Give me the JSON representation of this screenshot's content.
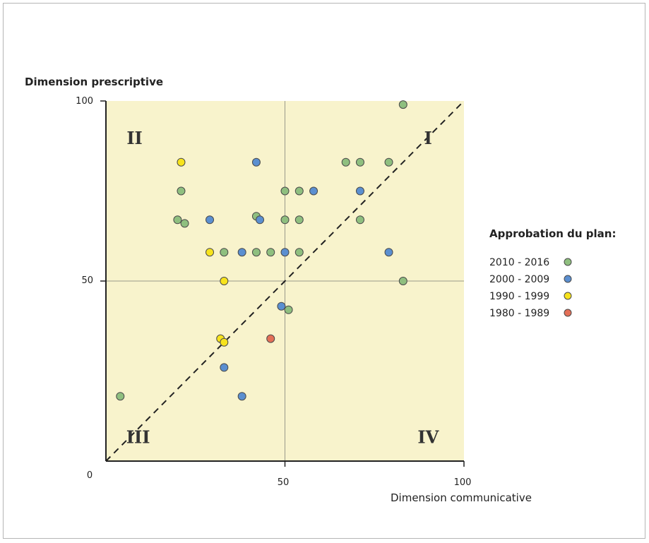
{
  "chart_data": {
    "type": "scatter",
    "title": "",
    "ylabel": "Dimension prescriptive",
    "xlabel": "Dimension communicative",
    "xlim": [
      0,
      100
    ],
    "ylim": [
      0,
      100
    ],
    "origin_label": "0",
    "x_ticks": [
      "50",
      "100"
    ],
    "y_ticks": [
      "50",
      "100"
    ],
    "reference_lines": {
      "x": 50,
      "y": 50,
      "diagonal": true
    },
    "quadrants": [
      {
        "label": "I",
        "position": "top-right"
      },
      {
        "label": "II",
        "position": "top-left"
      },
      {
        "label": "III",
        "position": "bottom-left"
      },
      {
        "label": "IV",
        "position": "bottom-right"
      }
    ],
    "legend": {
      "title": "Approbation du plan:",
      "placement": "right"
    },
    "series": [
      {
        "name": "2010 - 2016",
        "color": "#8fbf7f",
        "points": [
          [
            83,
            99
          ],
          [
            67,
            83
          ],
          [
            71,
            83
          ],
          [
            79,
            83
          ],
          [
            21,
            75
          ],
          [
            50,
            75
          ],
          [
            54,
            75
          ],
          [
            20,
            67
          ],
          [
            22,
            66
          ],
          [
            42,
            68
          ],
          [
            50,
            67
          ],
          [
            54,
            67
          ],
          [
            71,
            67
          ],
          [
            33,
            58
          ],
          [
            42,
            58
          ],
          [
            46,
            58
          ],
          [
            54,
            58
          ],
          [
            83,
            50
          ],
          [
            51,
            42
          ],
          [
            4,
            18
          ]
        ]
      },
      {
        "name": "2000 - 2009",
        "color": "#5b8fd0",
        "points": [
          [
            42,
            83
          ],
          [
            58,
            75
          ],
          [
            71,
            75
          ],
          [
            29,
            67
          ],
          [
            43,
            67
          ],
          [
            38,
            58
          ],
          [
            50,
            58
          ],
          [
            79,
            58
          ],
          [
            49,
            43
          ],
          [
            33,
            26
          ],
          [
            38,
            18
          ]
        ]
      },
      {
        "name": "1990 - 1999",
        "color": "#f7e31c",
        "points": [
          [
            21,
            83
          ],
          [
            29,
            58
          ],
          [
            33,
            50
          ],
          [
            32,
            34
          ],
          [
            33,
            33
          ]
        ]
      },
      {
        "name": "1980 - 1989",
        "color": "#e36f57",
        "points": [
          [
            46,
            34
          ]
        ]
      }
    ]
  }
}
